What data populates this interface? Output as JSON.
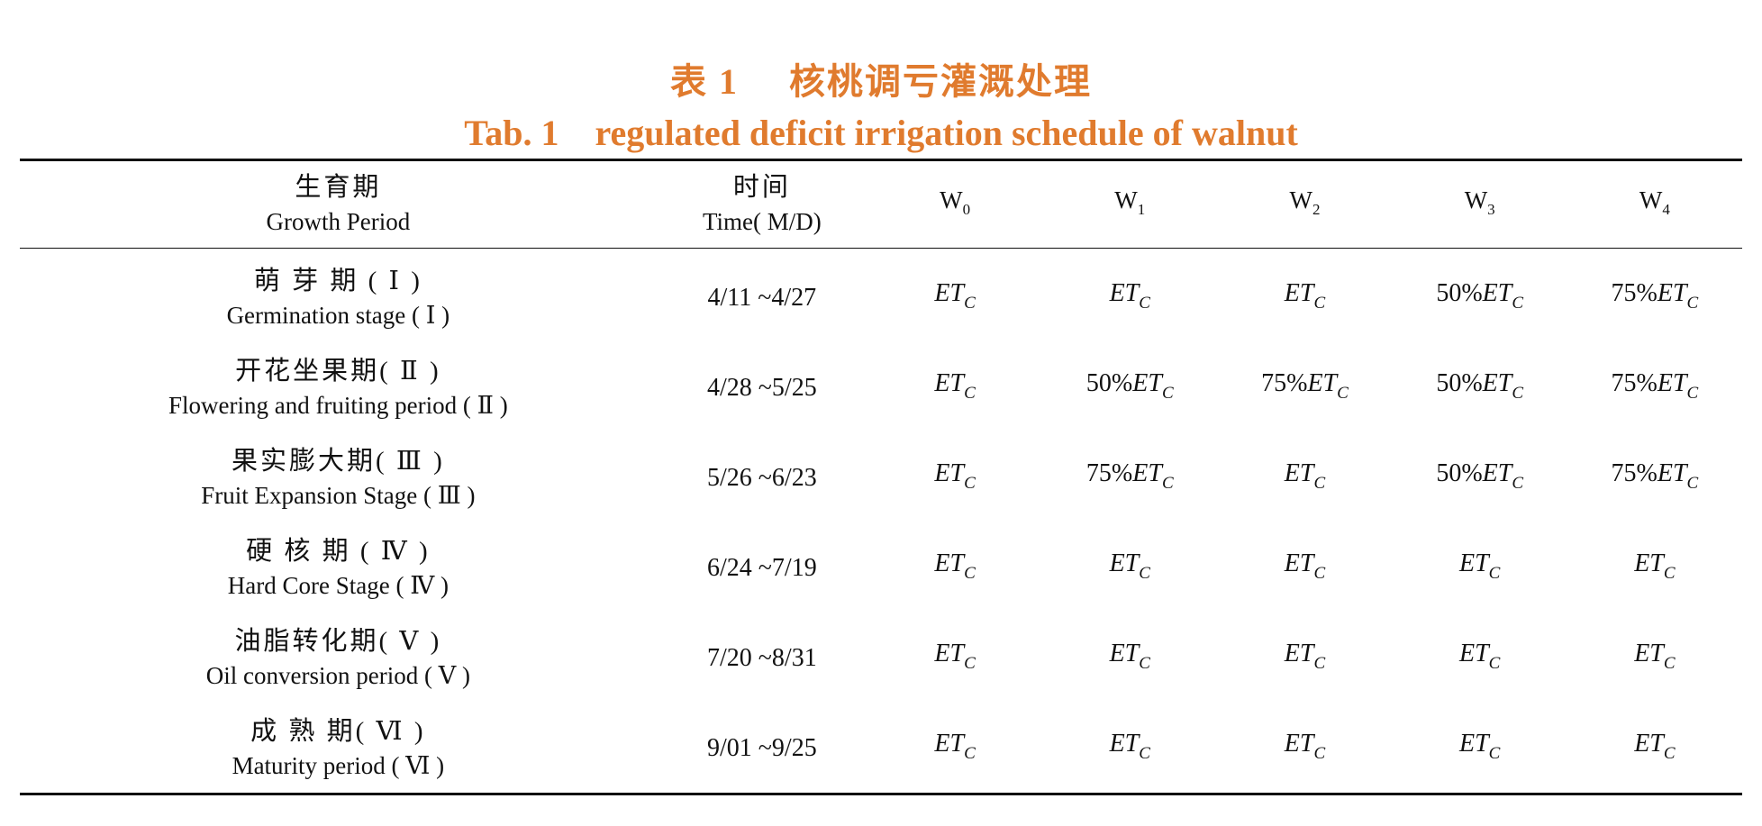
{
  "caption": {
    "zh_label": "表 1",
    "zh_title": "核桃调亏灌溉处理",
    "en_label": "Tab. 1",
    "en_title": "regulated deficit irrigation schedule of walnut"
  },
  "header": {
    "period_zh": "生育期",
    "period_en": "Growth Period",
    "time_zh": "时间",
    "time_en": "Time( M/D)",
    "treatments": [
      {
        "letter": "W",
        "sub": "0"
      },
      {
        "letter": "W",
        "sub": "1"
      },
      {
        "letter": "W",
        "sub": "2"
      },
      {
        "letter": "W",
        "sub": "3"
      },
      {
        "letter": "W",
        "sub": "4"
      }
    ]
  },
  "et_symbol": {
    "base": "ET",
    "sub": "C"
  },
  "rows": [
    {
      "zh": "萌 芽 期 ( Ⅰ )",
      "en": "Germination stage ( Ⅰ )",
      "time": "4/11 ~4/27",
      "cells": [
        "",
        "",
        "",
        "50%",
        "75%"
      ]
    },
    {
      "zh": "开花坐果期( Ⅱ )",
      "en": "Flowering and fruiting period ( Ⅱ )",
      "time": "4/28 ~5/25",
      "cells": [
        "",
        "50%",
        "75%",
        "50%",
        "75%"
      ]
    },
    {
      "zh": "果实膨大期( Ⅲ )",
      "en": "Fruit Expansion Stage ( Ⅲ )",
      "time": "5/26 ~6/23",
      "cells": [
        "",
        "75%",
        "",
        "50%",
        "75%"
      ]
    },
    {
      "zh": "硬 核 期 ( Ⅳ )",
      "en": "Hard Core Stage ( Ⅳ )",
      "time": "6/24 ~7/19",
      "cells": [
        "",
        "",
        "",
        "",
        ""
      ]
    },
    {
      "zh": "油脂转化期( Ⅴ )",
      "en": "Oil conversion period ( Ⅴ )",
      "time": "7/20 ~8/31",
      "cells": [
        "",
        "",
        "",
        "",
        ""
      ]
    },
    {
      "zh": "成 熟 期( Ⅵ )",
      "en": "Maturity period ( Ⅵ )",
      "time": "9/01 ~9/25",
      "cells": [
        "",
        "",
        "",
        "",
        ""
      ]
    }
  ],
  "colors": {
    "caption": "#e07b2e",
    "text": "#111111",
    "rule": "#111111"
  }
}
